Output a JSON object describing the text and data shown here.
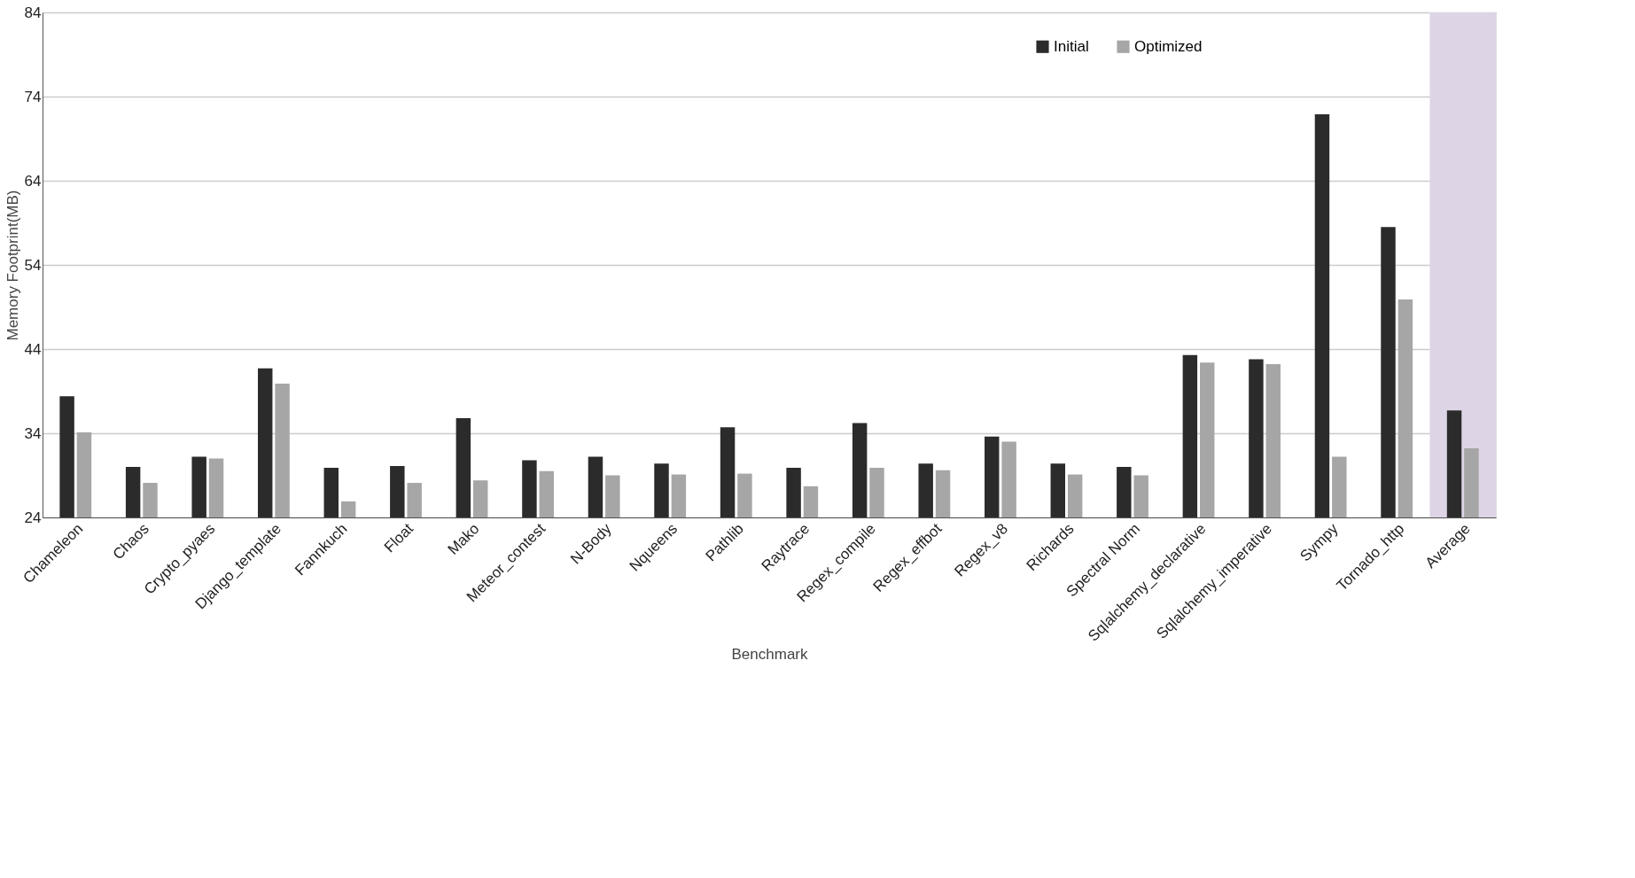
{
  "chart_data": {
    "type": "bar",
    "xlabel": "Benchmark",
    "ylabel": "Memory Footprint(MB)",
    "categories": [
      "Chameleon",
      "Chaos",
      "Crypto_pyaes",
      "Django_template",
      "Fannkuch",
      "Float",
      "Mako",
      "Meteor_contest",
      "N-Body",
      "Nqueens",
      "Pathlib",
      "Raytrace",
      "Regex_compile",
      "Regex_effbot",
      "Regex_v8",
      "Richards",
      "Spectral Norm",
      "Sqlalchemy_declarative",
      "Sqlalchemy_imperative",
      "Sympy",
      "Tornado_http",
      "Average"
    ],
    "series": [
      {
        "name": "Initial",
        "color": "#2b2b2b",
        "values": [
          38.4,
          30.0,
          31.2,
          41.7,
          29.9,
          30.1,
          35.8,
          30.8,
          31.2,
          30.4,
          34.7,
          29.9,
          35.2,
          30.4,
          33.6,
          30.4,
          30.0,
          43.3,
          42.8,
          71.9,
          58.5,
          36.7
        ]
      },
      {
        "name": "Optimized",
        "color": "#a6a6a6",
        "values": [
          34.1,
          28.1,
          31.0,
          39.9,
          25.9,
          28.1,
          28.4,
          29.5,
          29.0,
          29.1,
          29.2,
          27.7,
          29.9,
          29.6,
          33.0,
          29.1,
          29.0,
          42.4,
          42.2,
          31.2,
          49.9,
          32.2
        ]
      }
    ],
    "ylim": [
      24,
      84
    ],
    "yticks": [
      24,
      34,
      44,
      54,
      64,
      74,
      84
    ],
    "grid": "y",
    "legend": "top right",
    "bands": [
      {
        "axis": "x",
        "from": "Average",
        "to": "Average",
        "color": "#ddd5e6"
      }
    ]
  }
}
